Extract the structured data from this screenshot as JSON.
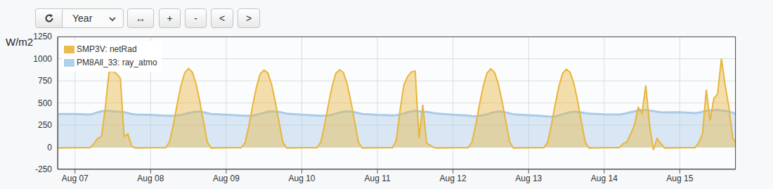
{
  "toolbar": {
    "select": "Year",
    "buttons": [
      "↔",
      "+",
      "-",
      "<",
      ">"
    ]
  },
  "chart_data": {
    "type": "area",
    "ylabel": "W/m2",
    "grid": true,
    "legend": "upper left",
    "x": [
      -0.23,
      0,
      0.2,
      0.25,
      0.3,
      0.35,
      0.4,
      0.45,
      0.5,
      0.55,
      0.6,
      0.65,
      0.7,
      0.75,
      0.8,
      1,
      1.2,
      1.25,
      1.3,
      1.35,
      1.4,
      1.45,
      1.5,
      1.55,
      1.6,
      1.65,
      1.7,
      1.75,
      1.8,
      2,
      2.2,
      2.25,
      2.3,
      2.35,
      2.4,
      2.45,
      2.5,
      2.55,
      2.6,
      2.65,
      2.7,
      2.75,
      2.8,
      3,
      3.2,
      3.25,
      3.3,
      3.35,
      3.4,
      3.45,
      3.5,
      3.55,
      3.6,
      3.65,
      3.7,
      3.75,
      3.8,
      4,
      4.2,
      4.25,
      4.3,
      4.35,
      4.4,
      4.45,
      4.5,
      4.55,
      4.6,
      4.65,
      4.7,
      4.75,
      4.8,
      5,
      5.2,
      5.25,
      5.3,
      5.35,
      5.4,
      5.45,
      5.5,
      5.55,
      5.6,
      5.65,
      5.7,
      5.75,
      5.8,
      6,
      6.2,
      6.25,
      6.3,
      6.35,
      6.4,
      6.45,
      6.5,
      6.55,
      6.6,
      6.65,
      6.7,
      6.75,
      6.8,
      7,
      7.2,
      7.25,
      7.3,
      7.35,
      7.4,
      7.45,
      7.5,
      7.55,
      7.6,
      7.65,
      7.7,
      7.75,
      7.8,
      8,
      8.2,
      8.25,
      8.3,
      8.35,
      8.4,
      8.45,
      8.5,
      8.55,
      8.6,
      8.65,
      8.7,
      8.74
    ],
    "series": [
      {
        "name": "SMP3V: netRad",
        "color": "#e8b53a",
        "values": [
          -10,
          -5,
          -5,
          40,
          100,
          120,
          440,
          850,
          860,
          830,
          780,
          120,
          150,
          10,
          -10,
          -5,
          -5,
          60,
          250,
          480,
          690,
          840,
          890,
          850,
          720,
          520,
          290,
          60,
          -10,
          -5,
          -5,
          50,
          240,
          470,
          680,
          830,
          870,
          840,
          710,
          510,
          280,
          55,
          -10,
          -5,
          -5,
          55,
          245,
          475,
          685,
          835,
          875,
          845,
          715,
          515,
          285,
          55,
          -10,
          -5,
          -5,
          80,
          420,
          700,
          800,
          850,
          860,
          100,
          480,
          50,
          20,
          -5,
          -10,
          -5,
          -5,
          55,
          250,
          480,
          690,
          840,
          885,
          845,
          715,
          515,
          285,
          60,
          -10,
          -5,
          -5,
          50,
          245,
          475,
          685,
          835,
          880,
          845,
          715,
          515,
          280,
          55,
          -10,
          -5,
          -5,
          40,
          60,
          150,
          250,
          450,
          380,
          700,
          250,
          -30,
          100,
          40,
          -10,
          -5,
          -5,
          50,
          150,
          650,
          300,
          550,
          600,
          1000,
          700,
          450,
          100,
          60
        ]
      },
      {
        "name": "PM8All_33: ray_atmo",
        "color": "#a9cbe8",
        "values": [
          375,
          375,
          370,
          380,
          395,
          405,
          410,
          410,
          405,
          400,
          400,
          395,
          385,
          375,
          370,
          365,
          355,
          355,
          355,
          360,
          365,
          375,
          385,
          395,
          400,
          400,
          395,
          385,
          375,
          368,
          358,
          355,
          355,
          358,
          365,
          378,
          390,
          400,
          405,
          403,
          398,
          390,
          378,
          368,
          358,
          355,
          357,
          360,
          368,
          380,
          392,
          400,
          405,
          403,
          395,
          385,
          375,
          365,
          360,
          362,
          370,
          380,
          395,
          405,
          410,
          405,
          400,
          398,
          392,
          385,
          378,
          368,
          358,
          352,
          350,
          355,
          362,
          372,
          385,
          395,
          402,
          400,
          392,
          382,
          372,
          362,
          352,
          348,
          345,
          350,
          360,
          372,
          385,
          395,
          400,
          398,
          392,
          385,
          378,
          372,
          370,
          375,
          385,
          395,
          405,
          415,
          420,
          418,
          412,
          408,
          400,
          395,
          392,
          395,
          385,
          390,
          400,
          410,
          415,
          418,
          420,
          415,
          410,
          400,
          390,
          375
        ]
      }
    ],
    "xlim": [
      -0.23,
      8.74
    ],
    "xticks": [
      {
        "value": 0,
        "label": "Aug 07"
      },
      {
        "value": 1,
        "label": "Aug 08"
      },
      {
        "value": 2,
        "label": "Aug 09"
      },
      {
        "value": 3,
        "label": "Aug 10"
      },
      {
        "value": 4,
        "label": "Aug 11"
      },
      {
        "value": 5,
        "label": "Aug 12"
      },
      {
        "value": 6,
        "label": "Aug 13"
      },
      {
        "value": 7,
        "label": "Aug 14"
      },
      {
        "value": 8,
        "label": "Aug 15"
      }
    ],
    "ylim": [
      -250,
      1250
    ],
    "yticks": [
      -250,
      0,
      250,
      500,
      750,
      1000,
      1250
    ]
  }
}
